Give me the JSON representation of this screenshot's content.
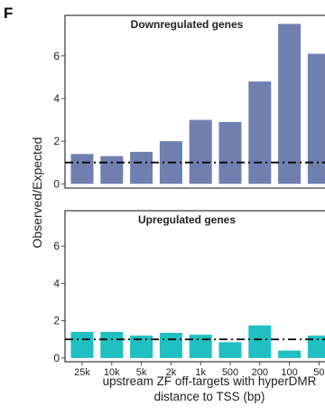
{
  "panel_label": "F",
  "chart_data": {
    "type": "bar",
    "categories": [
      "25k",
      "10k",
      "5k",
      "2k",
      "1k",
      "500",
      "200",
      "100",
      "50"
    ],
    "ylabel": "Observed/Expected",
    "xlabel": "upstream ZF off-targets with hyperDMR",
    "xlabel2": "distance to TSS (bp)",
    "reference_line": 1,
    "panels": [
      {
        "title": "Downregulated genes",
        "color": "#6f80b0",
        "values": [
          1.4,
          1.3,
          1.5,
          2.0,
          3.0,
          2.9,
          4.8,
          7.5,
          6.1
        ],
        "ylim": [
          -0.2,
          7.9
        ],
        "yticks": [
          "0",
          "2",
          "4",
          "6"
        ]
      },
      {
        "title": "Upregulated genes",
        "color": "#1fbfc2",
        "values": [
          1.4,
          1.4,
          1.2,
          1.35,
          1.25,
          0.85,
          1.75,
          0.4,
          1.2
        ],
        "ylim": [
          -0.2,
          7.9
        ],
        "yticks": [
          "0",
          "2",
          "4",
          "6"
        ]
      }
    ]
  }
}
